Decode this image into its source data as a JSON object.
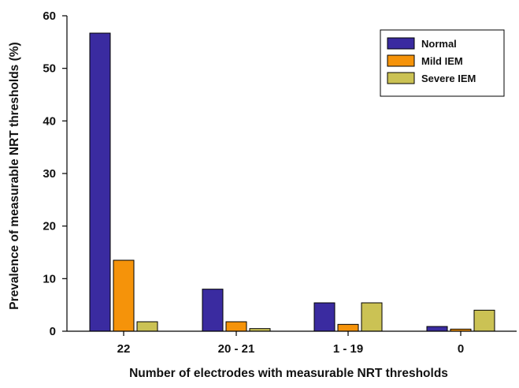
{
  "chart_data": {
    "type": "bar",
    "title": "",
    "xlabel": "Number of electrodes with measurable NRT thresholds",
    "ylabel": "Prevalence of measurable NRT thresholds (%)",
    "ylim": [
      0,
      60
    ],
    "yticks": [
      0,
      10,
      20,
      30,
      40,
      50,
      60
    ],
    "categories": [
      "22",
      "20 - 21",
      "1 - 19",
      "0"
    ],
    "series": [
      {
        "name": "Normal",
        "color": "#3a2ba0",
        "values": [
          56.7,
          8.0,
          5.4,
          0.9
        ]
      },
      {
        "name": "Mild IEM",
        "color": "#f5930a",
        "values": [
          13.5,
          1.8,
          1.3,
          0.4
        ]
      },
      {
        "name": "Severe IEM",
        "color": "#cbc254",
        "values": [
          1.8,
          0.5,
          5.4,
          4.0
        ]
      }
    ],
    "grid": false,
    "legend_position": "top-right"
  }
}
